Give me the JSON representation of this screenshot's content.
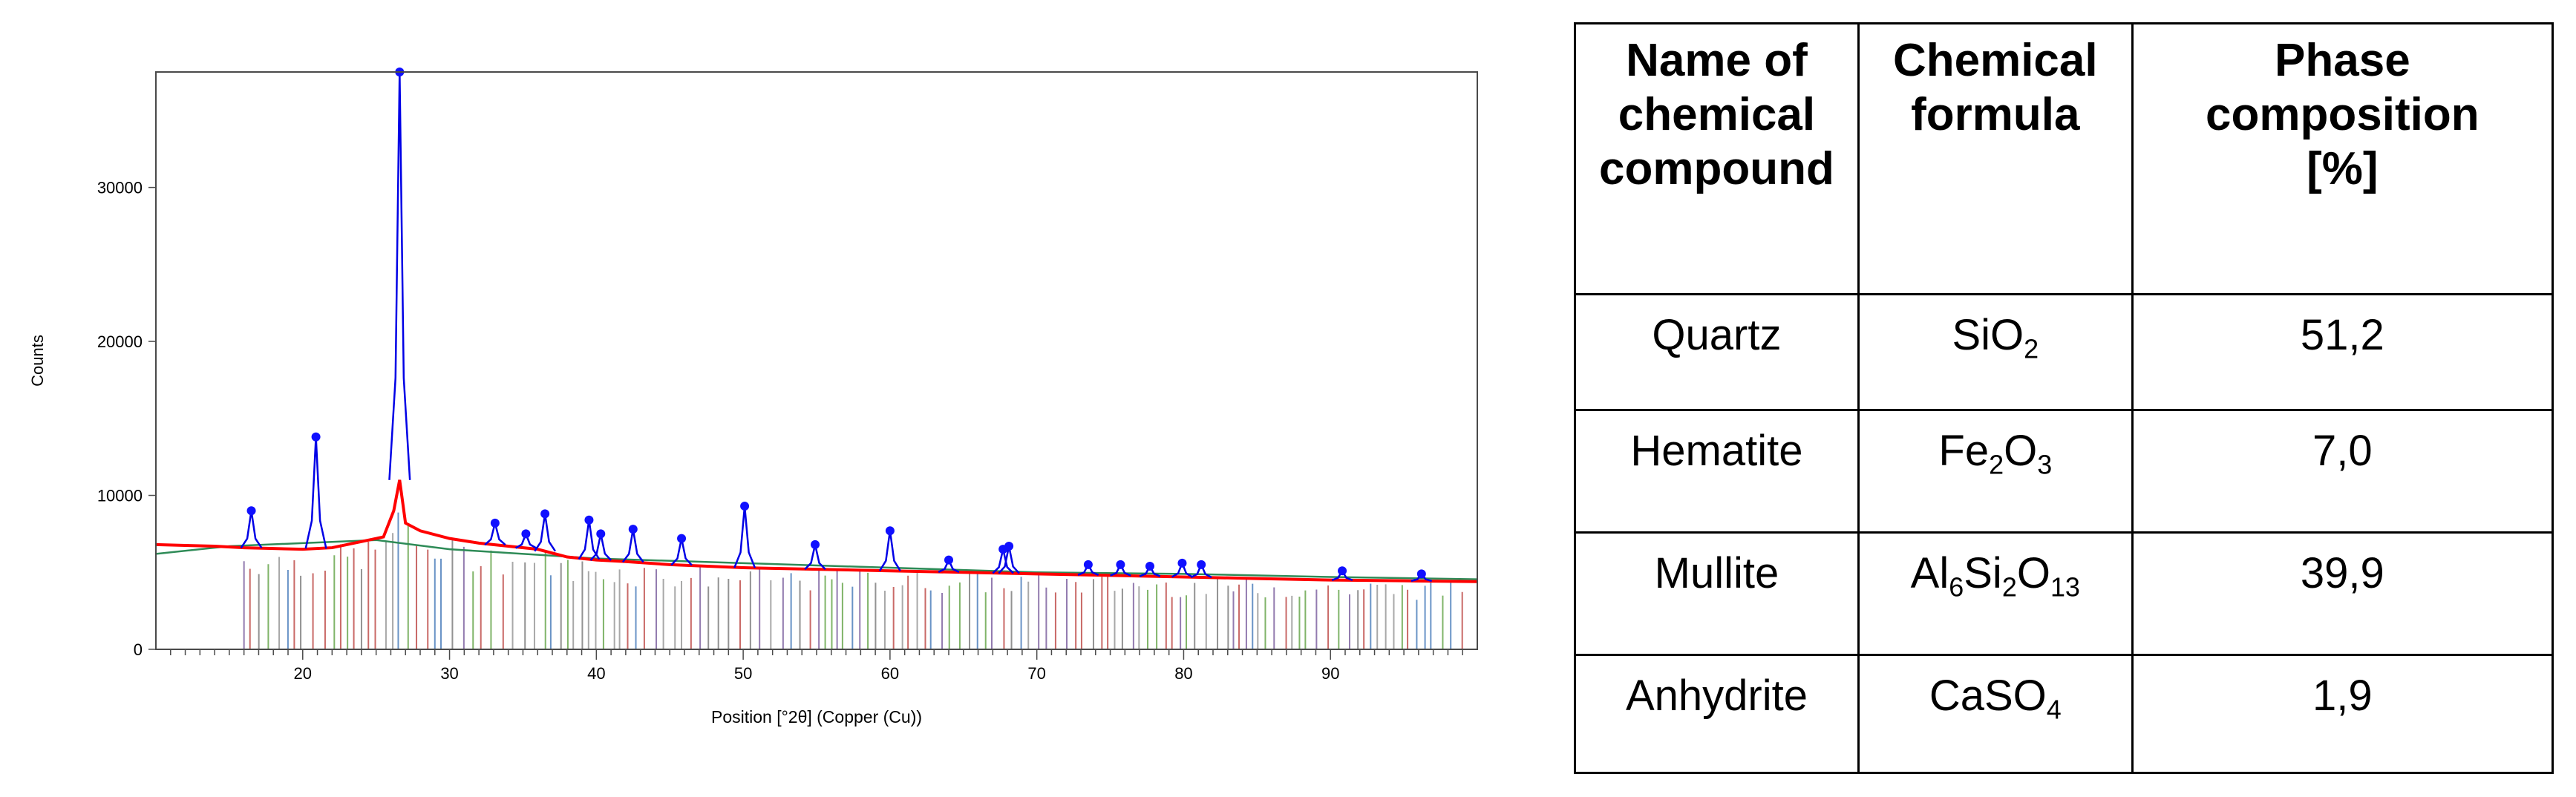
{
  "chart_data": {
    "type": "line",
    "ylabel": "Counts",
    "xlabel": "Position [°2θ] (Copper (Cu))",
    "xlim": [
      10,
      100
    ],
    "ylim": [
      0,
      37500
    ],
    "x_ticks": [
      20,
      30,
      40,
      50,
      60,
      70,
      80,
      90
    ],
    "y_ticks": [
      0,
      10000,
      20000,
      30000
    ],
    "grid": false,
    "colors": {
      "measured": "#ff0000",
      "fit": "#0000e6",
      "background_fit": "#2e8b57",
      "peak_marker": "#1010ff"
    },
    "series": [
      {
        "values": [
          {
            "x": 10,
            "y": 6800
          },
          {
            "x": 12,
            "y": 6750
          },
          {
            "x": 14,
            "y": 6700
          },
          {
            "x": 16,
            "y": 6600
          },
          {
            "x": 18,
            "y": 6550
          },
          {
            "x": 20,
            "y": 6500
          },
          {
            "x": 22,
            "y": 6600
          },
          {
            "x": 24,
            "y": 7000
          },
          {
            "x": 25.5,
            "y": 7300
          },
          {
            "x": 26.2,
            "y": 9000
          },
          {
            "x": 26.6,
            "y": 11000
          },
          {
            "x": 27,
            "y": 8200
          },
          {
            "x": 28,
            "y": 7700
          },
          {
            "x": 30,
            "y": 7200
          },
          {
            "x": 32,
            "y": 6900
          },
          {
            "x": 34,
            "y": 6700
          },
          {
            "x": 36,
            "y": 6500
          },
          {
            "x": 38,
            "y": 6000
          },
          {
            "x": 40,
            "y": 5800
          },
          {
            "x": 42,
            "y": 5700
          },
          {
            "x": 45,
            "y": 5500
          },
          {
            "x": 50,
            "y": 5300
          },
          {
            "x": 55,
            "y": 5200
          },
          {
            "x": 60,
            "y": 5100
          },
          {
            "x": 65,
            "y": 5000
          },
          {
            "x": 70,
            "y": 4900
          },
          {
            "x": 75,
            "y": 4800
          },
          {
            "x": 80,
            "y": 4700
          },
          {
            "x": 85,
            "y": 4600
          },
          {
            "x": 90,
            "y": 4500
          },
          {
            "x": 95,
            "y": 4450
          },
          {
            "x": 100,
            "y": 4400
          }
        ]
      },
      {
        "peaks": [
          {
            "x": 16.5,
            "y": 9000
          },
          {
            "x": 20.9,
            "y": 13800
          },
          {
            "x": 26.6,
            "y": 37500
          },
          {
            "x": 33.1,
            "y": 8200
          },
          {
            "x": 35.2,
            "y": 7500
          },
          {
            "x": 36.5,
            "y": 8800
          },
          {
            "x": 39.5,
            "y": 8400
          },
          {
            "x": 40.3,
            "y": 7500
          },
          {
            "x": 42.5,
            "y": 7800
          },
          {
            "x": 45.8,
            "y": 7200
          },
          {
            "x": 50.1,
            "y": 9300
          },
          {
            "x": 54.9,
            "y": 6800
          },
          {
            "x": 60.0,
            "y": 7700
          },
          {
            "x": 64.0,
            "y": 5800
          },
          {
            "x": 67.7,
            "y": 6500
          },
          {
            "x": 68.1,
            "y": 6700
          },
          {
            "x": 73.5,
            "y": 5500
          },
          {
            "x": 75.7,
            "y": 5500
          },
          {
            "x": 77.7,
            "y": 5400
          },
          {
            "x": 79.9,
            "y": 5600
          },
          {
            "x": 81.2,
            "y": 5500
          },
          {
            "x": 90.8,
            "y": 5100
          },
          {
            "x": 96.2,
            "y": 4900
          }
        ]
      },
      {
        "values": [
          {
            "x": 10,
            "y": 6200
          },
          {
            "x": 15,
            "y": 6700
          },
          {
            "x": 20,
            "y": 6900
          },
          {
            "x": 25,
            "y": 7100
          },
          {
            "x": 30,
            "y": 6500
          },
          {
            "x": 40,
            "y": 5900
          },
          {
            "x": 50,
            "y": 5600
          },
          {
            "x": 60,
            "y": 5300
          },
          {
            "x": 70,
            "y": 5000
          },
          {
            "x": 80,
            "y": 4900
          },
          {
            "x": 90,
            "y": 4700
          },
          {
            "x": 100,
            "y": 4550
          }
        ]
      }
    ]
  },
  "table": {
    "headers": [
      {
        "lines": [
          "Name of",
          "chemical",
          "compound"
        ]
      },
      {
        "lines": [
          "Chemical",
          "formula"
        ]
      },
      {
        "lines": [
          "Phase",
          "composition",
          "[%]"
        ]
      }
    ],
    "rows": [
      {
        "name": "Quartz",
        "formula": [
          {
            "t": "SiO"
          },
          {
            "sub": "2"
          }
        ],
        "value": "51,2"
      },
      {
        "name": "Hematite",
        "formula": [
          {
            "t": "Fe"
          },
          {
            "sub": "2"
          },
          {
            "t": "O"
          },
          {
            "sub": "3"
          }
        ],
        "value": "7,0"
      },
      {
        "name": "Mullite",
        "formula": [
          {
            "t": "Al"
          },
          {
            "sub": "6"
          },
          {
            "t": "Si"
          },
          {
            "sub": "2"
          },
          {
            "t": "O"
          },
          {
            "sub": "13"
          }
        ],
        "value": "39,9"
      },
      {
        "name": "Anhydrite",
        "formula": [
          {
            "t": "CaSO"
          },
          {
            "sub": "4"
          }
        ],
        "value": "1,9"
      }
    ]
  }
}
